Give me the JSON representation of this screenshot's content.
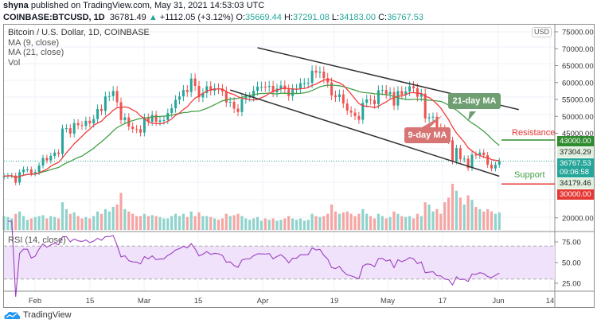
{
  "header": {
    "author": "shyna",
    "published": "published on TradingView.com, May 31, 2021 14:53:03 UTC",
    "symbol": "COINBASE:BTCUSD, 1D",
    "last": "36781.49",
    "change": "+1112.05 (+3.12%)",
    "o_label": "O:",
    "o": "35669.44",
    "h_label": "H:",
    "h": "37291.08",
    "l_label": "L:",
    "l": "34183.00",
    "c_label": "C:",
    "c": "36767.53"
  },
  "legend": {
    "title": "Bitcoin / U.S. Dollar, 1D, COINBASE",
    "ma9": "MA (9, close)",
    "ma21": "MA (21, close)",
    "vol": "Vol",
    "rsi": "RSI (14, close)"
  },
  "currency": "USD",
  "colors": {
    "up": "#26a69a",
    "down": "#ef5350",
    "ma9": "#f23c3c",
    "ma21": "#43a047",
    "rsi": "#9c3fc0",
    "resistance": "#2e8b2e",
    "support": "#e53935"
  },
  "annotations": {
    "ma21_label": "21-day MA",
    "ma9_label": "9-day MA",
    "resistance": "Resistance",
    "support": "Support"
  },
  "price_labels": {
    "resistance": "43000.00",
    "high": "37304.29",
    "last": "36767.53",
    "countdown": "09:06:58",
    "low": "34179.46",
    "support": "30000.00"
  },
  "brand": "TradingView",
  "chart_data": {
    "type": "candlestick",
    "start_date": "2021-01-24",
    "x_ticks": [
      "Feb",
      "15",
      "Mar",
      "15",
      "Apr",
      "19",
      "May",
      "17",
      "Jun",
      "14"
    ],
    "y_ticks": [
      "75000.00",
      "70000.00",
      "65000.00",
      "60000.00",
      "55000.00",
      "50000.00",
      "45000.00",
      "20000.00"
    ],
    "rsi_ticks": [
      "75.00",
      "50.00",
      "25.00"
    ],
    "ylim": [
      20000,
      75000
    ],
    "rsi_bands": [
      30,
      70
    ],
    "resistance": 43000,
    "support": 30000,
    "trend_lines": [
      {
        "from": [
          "2021-03-30",
          70300
        ],
        "to": [
          "2021-06-05",
          52000
        ]
      },
      {
        "from": [
          "2021-03-23",
          57800
        ],
        "to": [
          "2021-05-31",
          32300
        ]
      }
    ],
    "close": [
      32300,
      32500,
      32500,
      30400,
      33500,
      34300,
      34300,
      33100,
      33500,
      35500,
      37700,
      37000,
      38300,
      39300,
      38900,
      46400,
      46500,
      44900,
      48000,
      47400,
      47200,
      48700,
      47900,
      49200,
      52200,
      51600,
      55900,
      56000,
      57500,
      54200,
      48900,
      49700,
      47000,
      46300,
      46200,
      45200,
      49600,
      48400,
      50400,
      48400,
      48800,
      48900,
      51000,
      52400,
      54900,
      55900,
      57800,
      57200,
      61200,
      59000,
      55600,
      56900,
      58900,
      57600,
      58300,
      58100,
      57400,
      54100,
      54300,
      52300,
      51300,
      55100,
      55800,
      55800,
      57600,
      58800,
      58800,
      58700,
      59000,
      57100,
      58200,
      59100,
      58000,
      56000,
      58100,
      58100,
      59800,
      59800,
      59900,
      63500,
      62900,
      63200,
      61300,
      60000,
      56200,
      55700,
      56500,
      53800,
      51700,
      51100,
      50100,
      49000,
      54000,
      55000,
      54800,
      53600,
      57700,
      57800,
      56600,
      57200,
      53200,
      57500,
      56400,
      57400,
      58900,
      58300,
      55800,
      56700,
      49400,
      49700,
      49900,
      46700,
      46400,
      43500,
      42900,
      36700,
      40600,
      37300,
      37500,
      34700,
      38700,
      38400,
      39300,
      38500,
      35700,
      34600,
      35700,
      36768
    ],
    "volume": [
      30,
      28,
      25,
      35,
      40,
      30,
      22,
      25,
      28,
      30,
      32,
      25,
      30,
      28,
      25,
      60,
      45,
      35,
      38,
      30,
      25,
      28,
      25,
      30,
      40,
      35,
      45,
      40,
      50,
      55,
      80,
      45,
      40,
      35,
      30,
      30,
      35,
      30,
      32,
      30,
      28,
      25,
      25,
      30,
      35,
      30,
      35,
      28,
      40,
      30,
      38,
      30,
      30,
      28,
      25,
      22,
      25,
      35,
      30,
      32,
      35,
      30,
      25,
      22,
      25,
      28,
      20,
      25,
      22,
      25,
      20,
      22,
      25,
      30,
      25,
      22,
      25,
      20,
      22,
      35,
      30,
      28,
      30,
      35,
      55,
      40,
      35,
      38,
      40,
      35,
      30,
      35,
      45,
      35,
      30,
      25,
      35,
      30,
      25,
      28,
      40,
      35,
      30,
      28,
      30,
      25,
      35,
      30,
      60,
      55,
      40,
      45,
      35,
      60,
      70,
      100,
      85,
      70,
      55,
      75,
      65,
      50,
      45,
      40,
      45,
      40,
      35,
      38
    ]
  }
}
